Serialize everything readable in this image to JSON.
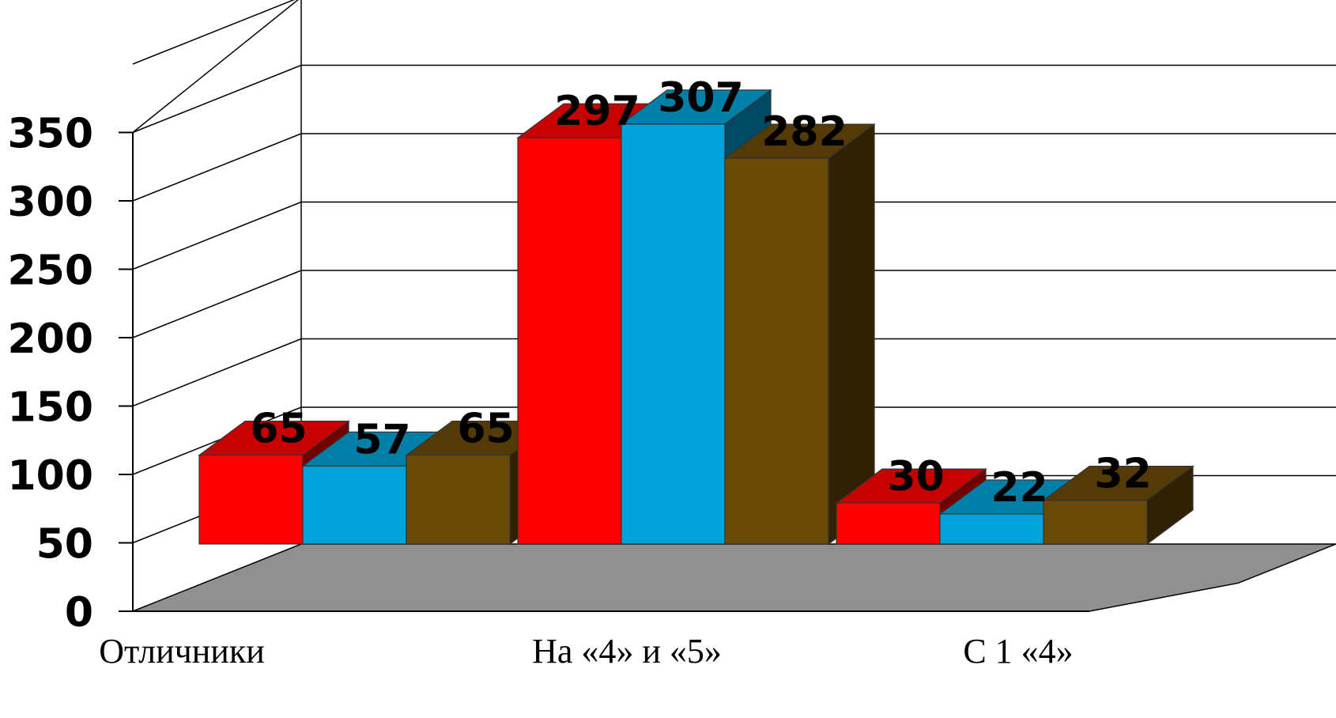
{
  "chart_data": {
    "type": "bar",
    "style": "3d-clustered-column",
    "categories": [
      "Отличники",
      "На «4» и «5»",
      "С 1 «4»"
    ],
    "series": [
      {
        "values": [
          65,
          297,
          30
        ],
        "color": "#ff0000"
      },
      {
        "values": [
          57,
          307,
          22
        ],
        "color": "#00a3d9"
      },
      {
        "values": [
          65,
          282,
          32
        ],
        "color": "#6b4a08"
      }
    ],
    "ylim": [
      0,
      350
    ],
    "yticks": [
      "0",
      "50",
      "100",
      "150",
      "200",
      "250",
      "300",
      "350"
    ],
    "grid": true,
    "floor_color": "#909090",
    "data_labels": true
  }
}
